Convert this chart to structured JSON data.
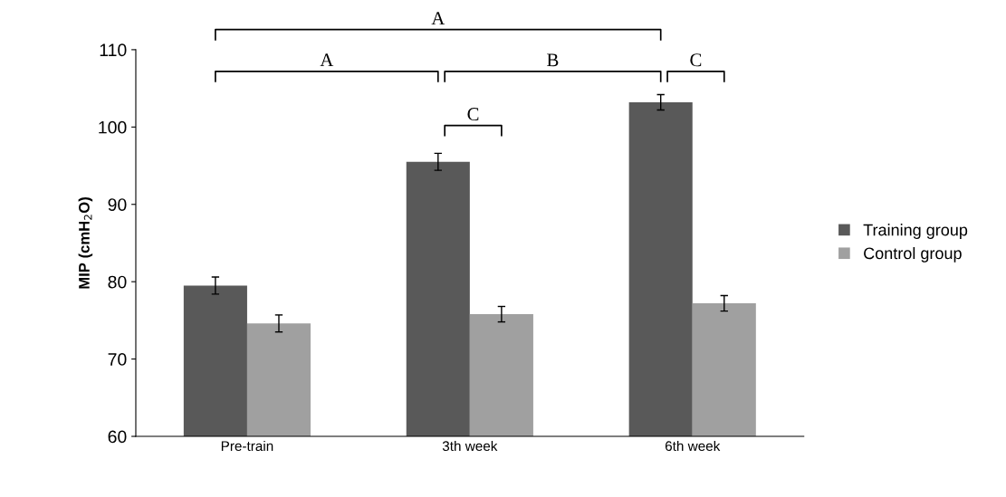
{
  "chart_data": {
    "type": "bar",
    "ylabel": "MIP (cmH$_{2}$O)",
    "categories": [
      "Pre-train",
      "3th week",
      "6th week"
    ],
    "series": [
      {
        "name": "Training group",
        "color": "#595959",
        "values": [
          79.5,
          95.5,
          103.2
        ],
        "errors": [
          1.1,
          1.1,
          1.0
        ]
      },
      {
        "name": "Control group",
        "color": "#a0a0a0",
        "values": [
          74.6,
          75.8,
          77.2
        ],
        "errors": [
          1.1,
          1.0,
          1.0
        ]
      }
    ],
    "ylim": [
      60,
      110
    ],
    "yticks": [
      60,
      70,
      80,
      90,
      100,
      110
    ],
    "grid": false,
    "legend": "right",
    "annotations": [
      "A",
      "A",
      "B",
      "C",
      "C"
    ]
  }
}
